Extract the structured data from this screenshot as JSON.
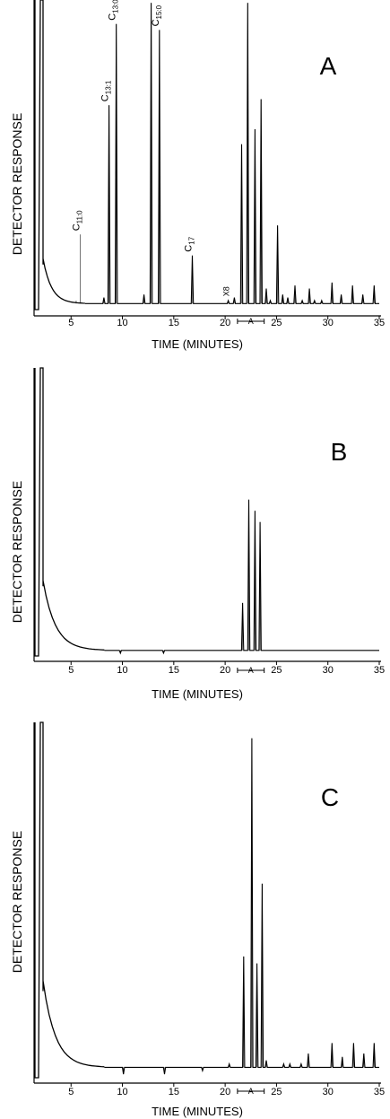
{
  "chart_data": [
    {
      "type": "line",
      "panel": "A",
      "ylabel": "DETECTOR RESPONSE",
      "xlabel": "TIME (MINUTES)",
      "xlim": [
        0,
        35
      ],
      "x_ticks": [
        5,
        10,
        15,
        20,
        25,
        30,
        35
      ],
      "bracket_label": "A",
      "bracket_range": [
        21.2,
        23.8
      ],
      "gain_mark": {
        "label": "X8",
        "time": 20.2
      },
      "baseline": 0.02,
      "solvent_front": 0.6,
      "peaks": [
        {
          "t": 5.5,
          "h": 0.03
        },
        {
          "t": 5.9,
          "h": 0.25,
          "label": "C",
          "sub": "11:0"
        },
        {
          "t": 8.2,
          "h": 0.04
        },
        {
          "t": 8.7,
          "h": 0.68,
          "label": "C",
          "sub": "13:1"
        },
        {
          "t": 9.4,
          "h": 0.95,
          "label": "C",
          "sub": "13:0"
        },
        {
          "t": 12.1,
          "h": 0.05
        },
        {
          "t": 12.8,
          "h": 1.02
        },
        {
          "t": 13.6,
          "h": 0.93,
          "label": "C",
          "sub": "15:0"
        },
        {
          "t": 16.8,
          "h": 0.18,
          "label": "C",
          "sub": "17"
        },
        {
          "t": 17.4,
          "h": 0.02
        },
        {
          "t": 20.3,
          "h": 0.03
        },
        {
          "t": 20.9,
          "h": 0.04
        },
        {
          "t": 21.6,
          "h": 0.55
        },
        {
          "t": 22.2,
          "h": 1.02
        },
        {
          "t": 22.9,
          "h": 0.6
        },
        {
          "t": 23.5,
          "h": 0.7
        },
        {
          "t": 24.0,
          "h": 0.07
        },
        {
          "t": 24.4,
          "h": 0.03
        },
        {
          "t": 25.1,
          "h": 0.28
        },
        {
          "t": 25.6,
          "h": 0.05
        },
        {
          "t": 26.1,
          "h": 0.04
        },
        {
          "t": 26.8,
          "h": 0.08
        },
        {
          "t": 27.5,
          "h": 0.03
        },
        {
          "t": 28.2,
          "h": 0.07
        },
        {
          "t": 28.7,
          "h": 0.03
        },
        {
          "t": 29.4,
          "h": 0.03
        },
        {
          "t": 30.4,
          "h": 0.09
        },
        {
          "t": 31.3,
          "h": 0.05
        },
        {
          "t": 32.4,
          "h": 0.08
        },
        {
          "t": 33.4,
          "h": 0.05
        },
        {
          "t": 34.5,
          "h": 0.08
        }
      ]
    },
    {
      "type": "line",
      "panel": "B",
      "ylabel": "DETECTOR RESPONSE",
      "xlabel": "TIME (MINUTES)",
      "xlim": [
        0,
        35
      ],
      "x_ticks": [
        5,
        10,
        15,
        20,
        25,
        30,
        35
      ],
      "bracket_label": "A",
      "bracket_range": [
        21.2,
        23.8
      ],
      "baseline": 0.02,
      "solvent_front": 1.0,
      "peaks": [
        {
          "t": 9.8,
          "h": 0.01
        },
        {
          "t": 14.0,
          "h": 0.01
        },
        {
          "t": 17.9,
          "h": 0.02
        },
        {
          "t": 20.2,
          "h": 0.02
        },
        {
          "t": 20.7,
          "h": 0.02
        },
        {
          "t": 21.7,
          "h": 0.19
        },
        {
          "t": 22.3,
          "h": 0.56
        },
        {
          "t": 22.9,
          "h": 0.52
        },
        {
          "t": 23.4,
          "h": 0.48
        },
        {
          "t": 24.1,
          "h": 0.02
        },
        {
          "t": 25.2,
          "h": 0.02
        },
        {
          "t": 26.3,
          "h": 0.02
        },
        {
          "t": 27.6,
          "h": 0.02
        },
        {
          "t": 28.2,
          "h": 0.02
        },
        {
          "t": 30.4,
          "h": 0.02
        },
        {
          "t": 32.5,
          "h": 0.02
        },
        {
          "t": 33.6,
          "h": 0.02
        },
        {
          "t": 34.6,
          "h": 0.02
        }
      ]
    },
    {
      "type": "line",
      "panel": "C",
      "ylabel": "DETECTOR RESPONSE",
      "xlabel": "TIME (MINUTES)",
      "xlim": [
        0,
        35
      ],
      "x_ticks": [
        5,
        10,
        15,
        20,
        25,
        30,
        35
      ],
      "bracket_label": "A",
      "bracket_range": [
        21.2,
        23.8
      ],
      "baseline": 0.03,
      "solvent_front": 1.0,
      "peaks": [
        {
          "t": 10.1,
          "h": 0.01
        },
        {
          "t": 14.1,
          "h": 0.01
        },
        {
          "t": 17.8,
          "h": 0.02
        },
        {
          "t": 19.9,
          "h": 0.03
        },
        {
          "t": 20.4,
          "h": 0.04
        },
        {
          "t": 21.8,
          "h": 0.35
        },
        {
          "t": 22.6,
          "h": 0.98
        },
        {
          "t": 23.1,
          "h": 0.33
        },
        {
          "t": 23.6,
          "h": 0.56
        },
        {
          "t": 24.0,
          "h": 0.05
        },
        {
          "t": 25.2,
          "h": 0.03
        },
        {
          "t": 25.7,
          "h": 0.04
        },
        {
          "t": 26.3,
          "h": 0.04
        },
        {
          "t": 27.4,
          "h": 0.04
        },
        {
          "t": 28.1,
          "h": 0.07
        },
        {
          "t": 29.2,
          "h": 0.03
        },
        {
          "t": 30.4,
          "h": 0.1
        },
        {
          "t": 31.4,
          "h": 0.06
        },
        {
          "t": 32.5,
          "h": 0.1
        },
        {
          "t": 33.5,
          "h": 0.07
        },
        {
          "t": 34.5,
          "h": 0.1
        }
      ]
    }
  ]
}
